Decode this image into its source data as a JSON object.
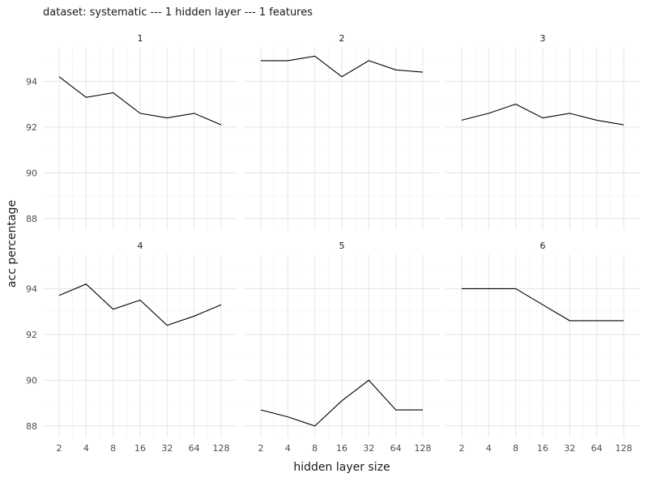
{
  "chart_data": {
    "type": "line",
    "title": "dataset: systematic --- 1 hidden layer --- 1 features",
    "xlabel": "hidden layer size",
    "ylabel": "acc percentage",
    "x_ticks": [
      "2",
      "4",
      "8",
      "16",
      "32",
      "64",
      "128"
    ],
    "y_ticks": [
      88,
      90,
      92,
      94
    ],
    "ylim": [
      87.5,
      95.5
    ],
    "grid": true,
    "facets": [
      {
        "label": "1",
        "x": [
          2,
          4,
          8,
          16,
          32,
          64,
          128
        ],
        "values": [
          94.2,
          93.3,
          93.5,
          92.6,
          92.4,
          92.6,
          92.1
        ]
      },
      {
        "label": "2",
        "x": [
          2,
          4,
          8,
          16,
          32,
          64,
          128
        ],
        "values": [
          94.9,
          94.9,
          95.1,
          94.2,
          94.9,
          94.5,
          94.4
        ]
      },
      {
        "label": "3",
        "x": [
          2,
          4,
          8,
          16,
          32,
          64,
          128
        ],
        "values": [
          92.3,
          92.6,
          93.0,
          92.4,
          92.6,
          92.3,
          92.1
        ]
      },
      {
        "label": "4",
        "x": [
          2,
          4,
          8,
          16,
          32,
          64,
          128
        ],
        "values": [
          93.7,
          94.2,
          93.1,
          93.5,
          92.4,
          92.8,
          93.3
        ]
      },
      {
        "label": "5",
        "x": [
          2,
          4,
          8,
          16,
          32,
          64,
          128
        ],
        "values": [
          88.7,
          88.4,
          88.0,
          89.1,
          90.0,
          88.7,
          88.7
        ]
      },
      {
        "label": "6",
        "x": [
          2,
          4,
          8,
          16,
          32,
          64,
          128
        ],
        "values": [
          94.0,
          94.0,
          94.0,
          93.3,
          92.6,
          92.6,
          92.6
        ]
      }
    ]
  }
}
